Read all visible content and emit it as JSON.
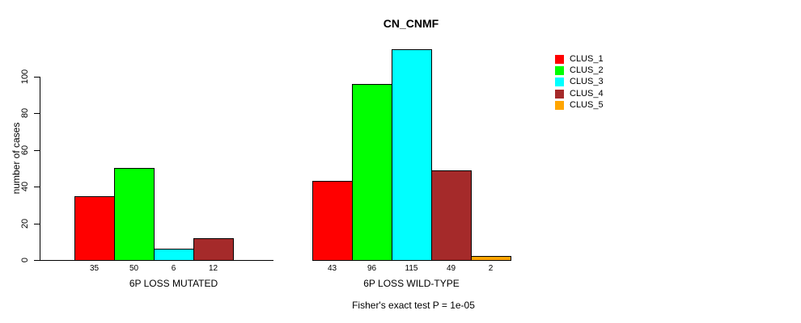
{
  "chart_data": {
    "type": "bar",
    "title": "CN_CNMF",
    "ylabel": "number of cases",
    "xlabel": "",
    "annotation": "Fisher's exact test P = 1e-05",
    "ylim": [
      0,
      115
    ],
    "yticks": [
      0,
      20,
      40,
      60,
      80,
      100
    ],
    "grid": false,
    "legend_position": "right",
    "categories": [
      "6P LOSS MUTATED",
      "6P LOSS WILD-TYPE"
    ],
    "series": [
      {
        "name": "CLUS_1",
        "color": "#FF0000",
        "values": [
          35,
          43
        ]
      },
      {
        "name": "CLUS_2",
        "color": "#00FF00",
        "values": [
          50,
          96
        ]
      },
      {
        "name": "CLUS_3",
        "color": "#00FFFF",
        "values": [
          6,
          115
        ]
      },
      {
        "name": "CLUS_4",
        "color": "#A52A2A",
        "values": [
          12,
          49
        ]
      },
      {
        "name": "CLUS_5",
        "color": "#FFA500",
        "values": [
          0,
          2
        ]
      }
    ],
    "bar_labels": [
      [
        "35",
        "50",
        "6",
        "12",
        ""
      ],
      [
        "43",
        "96",
        "115",
        "49",
        "2"
      ]
    ]
  }
}
